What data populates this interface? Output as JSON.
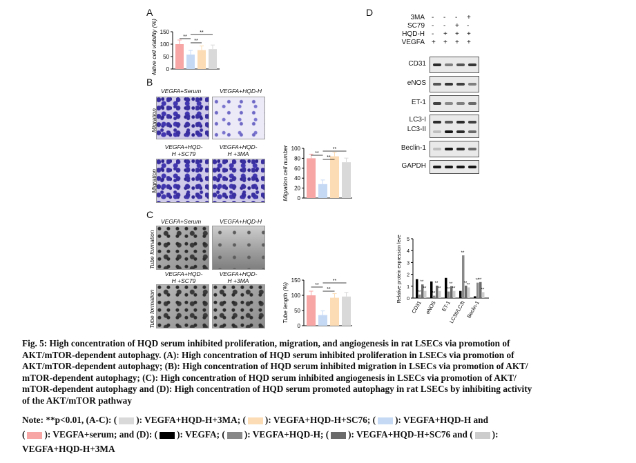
{
  "panel_labels": {
    "a": "A",
    "b": "B",
    "c": "C",
    "d": "D"
  },
  "colors": {
    "serum": "#f7a5a5",
    "hqd_h": "#c5d9f5",
    "sc79": "#fcdcb5",
    "ma3": "#d9d9d9",
    "d_vegfa": "#000000",
    "d_hqd": "#888888",
    "d_sc79": "#6a6a6a",
    "d_3ma": "#cccccc"
  },
  "panel_a": {
    "ylabel": "Relative cell viability (%)",
    "yticks": [
      "150",
      "100",
      "50",
      "0"
    ],
    "sig": [
      "**",
      "**",
      "**"
    ]
  },
  "panel_b": {
    "images": [
      {
        "label": "VEGFA+Serum"
      },
      {
        "label": "VEGFA+HQD-H"
      },
      {
        "label": "VEGFA+HQD-H +SC79"
      },
      {
        "label": "VEGFA+HQD-H +3MA"
      }
    ],
    "row_label": "Migration",
    "ylabel": "Migration cell number",
    "yticks": [
      "100",
      "80",
      "60",
      "40",
      "20",
      "0"
    ],
    "sig": [
      "**",
      "**",
      "**"
    ]
  },
  "panel_c": {
    "images": [
      {
        "label": "VEGFA+Serum"
      },
      {
        "label": "VEGFA+HQD-H"
      },
      {
        "label": "VEGFA+HQD-H +SC79"
      },
      {
        "label": "VEGFA+HQD-H +3MA"
      }
    ],
    "row_label": "Tube formation",
    "ylabel": "Tube length (%)",
    "yticks": [
      "150",
      "100",
      "50",
      "0"
    ],
    "sig": [
      "**",
      "**",
      "**"
    ]
  },
  "panel_d": {
    "conditions": [
      {
        "name": "3MA",
        "values": [
          "-",
          "-",
          "-",
          "+"
        ]
      },
      {
        "name": "SC79",
        "values": [
          "-",
          "-",
          "+",
          "-"
        ]
      },
      {
        "name": "HQD-H",
        "values": [
          "-",
          "+",
          "+",
          "+"
        ]
      },
      {
        "name": "VEGFA",
        "values": [
          "+",
          "+",
          "+",
          "+"
        ]
      }
    ],
    "blots": [
      "CD31",
      "eNOS",
      "ET-1",
      "LC3-I",
      "LC3-II",
      "Beclin-1",
      "GAPDH"
    ],
    "bar_ylabel": "Relative protein expression level",
    "bar_yticks": [
      "5",
      "4",
      "3",
      "2",
      "1",
      "0"
    ],
    "bar_categories": [
      "CD31",
      "eNOS",
      "ET-1",
      "LC3II/LC3I",
      "Beclin-1"
    ],
    "sig": "**"
  },
  "chart_data": [
    {
      "type": "bar",
      "title": "",
      "ylabel": "Relative cell viability (%)",
      "ylim": [
        0,
        150
      ],
      "categories": [
        "VEGFA+serum",
        "VEGFA+HQD-H",
        "VEGFA+HQD-H+SC79",
        "VEGFA+HQD-H+3MA"
      ],
      "values": [
        100,
        58,
        76,
        80
      ]
    },
    {
      "type": "bar",
      "title": "",
      "ylabel": "Migration cell number",
      "ylim": [
        0,
        100
      ],
      "categories": [
        "VEGFA+serum",
        "VEGFA+HQD-H",
        "VEGFA+HQD-H+SC79",
        "VEGFA+HQD-H+3MA"
      ],
      "values": [
        80,
        28,
        84,
        72
      ]
    },
    {
      "type": "bar",
      "title": "",
      "ylabel": "Tube length (%)",
      "ylim": [
        0,
        150
      ],
      "categories": [
        "VEGFA+serum",
        "VEGFA+HQD-H",
        "VEGFA+HQD-H+SC79",
        "VEGFA+HQD-H+3MA"
      ],
      "values": [
        100,
        35,
        92,
        96
      ]
    },
    {
      "type": "bar",
      "title": "",
      "ylabel": "Relative protein expression level",
      "ylim": [
        0,
        5
      ],
      "categories": [
        "CD31",
        "eNOS",
        "ET-1",
        "LC3II/LC3I",
        "Beclin-1"
      ],
      "series": [
        {
          "name": "VEGFA",
          "values": [
            1.6,
            1.4,
            1.7,
            0.6,
            0.15
          ]
        },
        {
          "name": "VEGFA+HQD-H",
          "values": [
            0.3,
            0.2,
            0.55,
            3.6,
            1.3
          ]
        },
        {
          "name": "VEGFA+HQD-H+SC79",
          "values": [
            1.15,
            1.05,
            1.0,
            1.05,
            1.35
          ]
        },
        {
          "name": "VEGFA+HQD-H+3MA",
          "values": [
            0.6,
            0.6,
            0.6,
            0.9,
            0.5
          ]
        }
      ]
    }
  ],
  "caption": {
    "lines": [
      "Fig. 5: High concentration of HQD serum inhibited proliferation, migration, and angiogenesis in rat LSECs via promotion of",
      "AKT/mTOR-dependent autophagy. (A): High concentration of HQD serum inhibited proliferation in LSECs via promotion of",
      "AKT/mTOR-dependent autophagy; (B): High concentration of HQD serum inhibited migration in LSECs via promotion of AKT/",
      "mTOR-dependent autophagy; (C): High concentration of HQD serum inhibited angiogenesis in LSECs via promotion of AKT/",
      "mTOR-dependent autophagy and (D): High concentration of HQD serum promoted autophagy in rat LSECs by inhibiting activity",
      "of the AKT/mTOR pathway"
    ],
    "note_prefix": "Note: **p<0.01, (A-C): (",
    "note_parts": [
      "): VEGFA+HQD-H+3MA; (",
      "): VEGFA+HQD-H+SC76; (",
      "): VEGFA+HQD-H and",
      "): VEGFA+serum; and (D): (",
      "): VEGFA; (",
      "): VEGFA+HQD-H; (",
      "): VEGFA+HQD-H+SC76 and (",
      "):",
      "VEGFA+HQD-H+3MA"
    ]
  }
}
